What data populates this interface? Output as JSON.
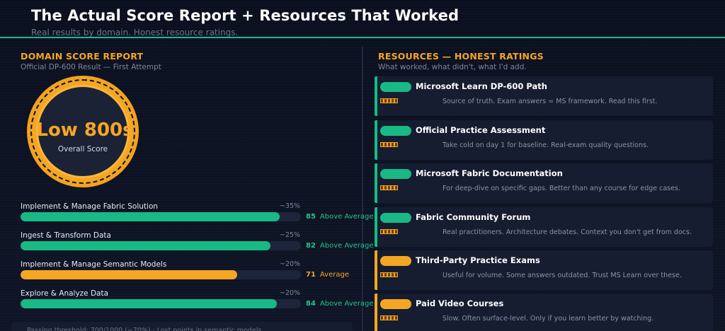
{
  "header": {
    "title": "The Actual Score Report + Resources That Worked",
    "subtitle": "Real results by domain. Honest resource ratings."
  },
  "colors": {
    "accent_green": "#18b985",
    "accent_orange": "#f5a623",
    "background": "#0d1220",
    "card": "#161d30"
  },
  "score_report": {
    "title": "DOMAIN SCORE REPORT",
    "subtitle": "Official DP-600 Result — First Attempt",
    "overall_value": "Low 800s",
    "overall_label": "Overall Score",
    "domains": [
      {
        "name": "Implement & Manage Fabric Solution",
        "weight": "~35%",
        "score": 85,
        "score_text": "85",
        "rating": "Above Average",
        "status": "green"
      },
      {
        "name": "Ingest & Transform Data",
        "weight": "~25%",
        "score": 82,
        "score_text": "82",
        "rating": "Above Average",
        "status": "green"
      },
      {
        "name": "Implement & Manage Semantic Models",
        "weight": "~20%",
        "score": 71,
        "score_text": "71",
        "rating": "Average",
        "status": "orange"
      },
      {
        "name": "Explore & Analyze Data",
        "weight": "~20%",
        "score": 84,
        "score_text": "84",
        "rating": "Above Average",
        "status": "green"
      }
    ],
    "footnote": "Passing threshold: 700/1000 (~70%) · Lost points in semantic models"
  },
  "resources": {
    "title": "RESOURCES — HONEST RATINGS",
    "subtitle": "What worked, what didn't, what I'd add.",
    "items": [
      {
        "title": "Microsoft Learn DP-600 Path",
        "desc": "Source of truth. Exam answers = MS framework. Read this first.",
        "status": "green",
        "icon": "rating-stars-icon"
      },
      {
        "title": "Official Practice Assessment",
        "desc": "Take cold on day 1 for baseline. Real-exam quality questions.",
        "status": "green",
        "icon": "rating-stars-icon"
      },
      {
        "title": "Microsoft Fabric Documentation",
        "desc": "For deep-dive on specific gaps. Better than any course for edge cases.",
        "status": "green",
        "icon": "rating-stars-icon"
      },
      {
        "title": "Fabric Community Forum",
        "desc": "Real practitioners. Architecture debates. Context you don't get from docs.",
        "status": "green",
        "icon": "rating-stars-icon"
      },
      {
        "title": "Third-Party Practice Exams",
        "desc": "Useful for volume. Some answers outdated. Trust MS Learn over these.",
        "status": "orange",
        "icon": "rating-stars-icon"
      },
      {
        "title": "Paid Video Courses",
        "desc": "Slow. Often surface-level. Only if you learn better by watching.",
        "status": "orange",
        "icon": "rating-stars-icon"
      }
    ]
  }
}
